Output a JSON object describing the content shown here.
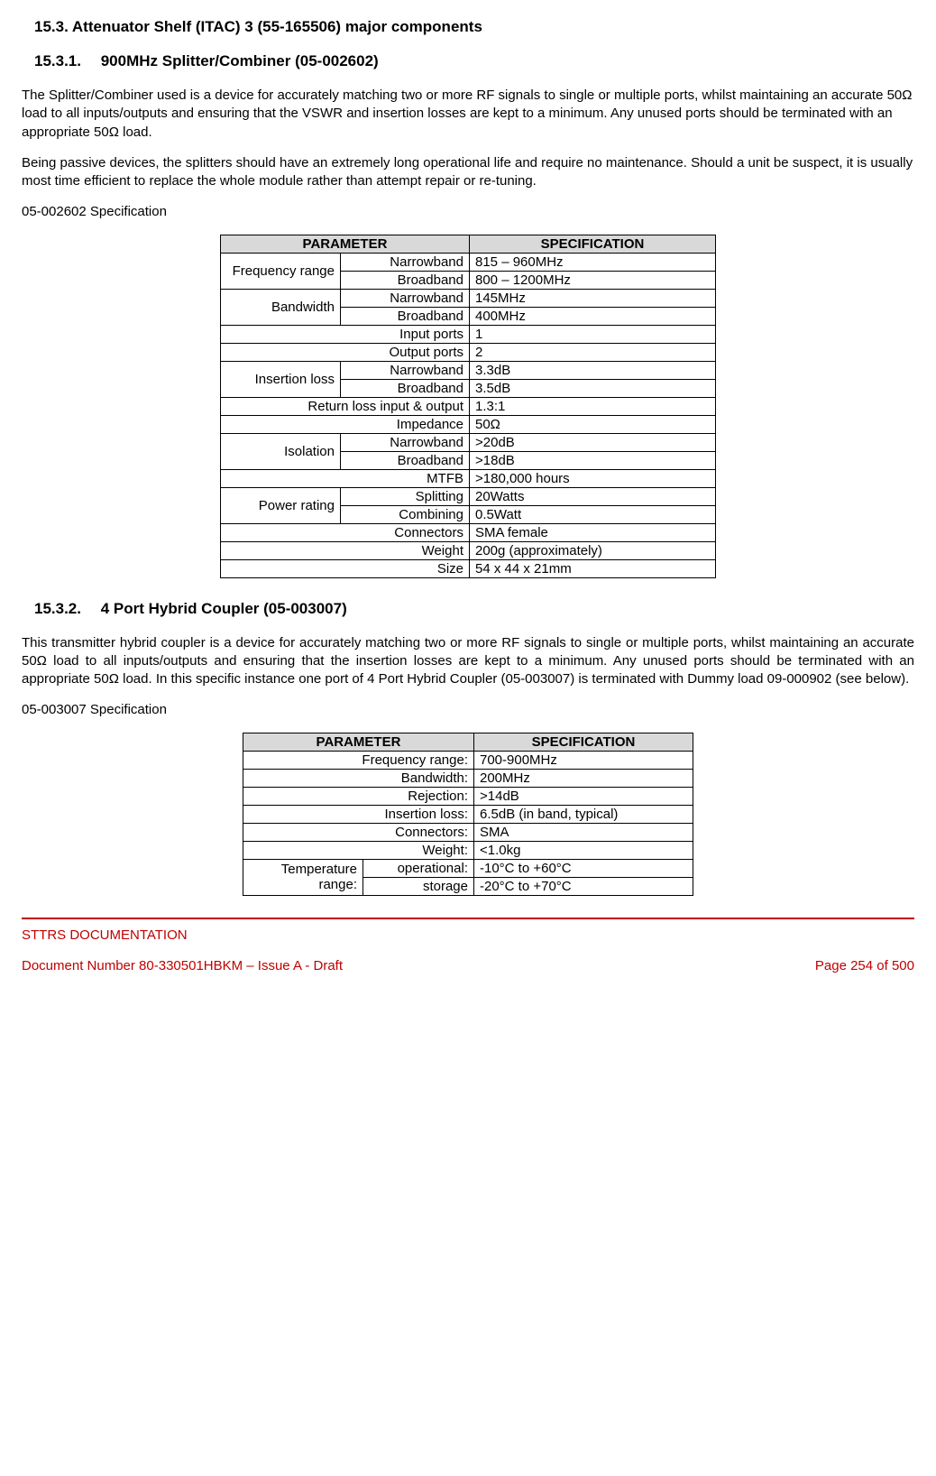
{
  "heading_main": "15.3. Attenuator Shelf (ITAC) 3 (55-165506) major components",
  "section1": {
    "heading": "15.3.1.  900MHz Splitter/Combiner (05-002602)",
    "para1": "The Splitter/Combiner used is a device for accurately matching two or more RF signals to single or multiple ports, whilst maintaining an accurate 50Ω load to all inputs/outputs and ensuring that the VSWR and insertion losses are kept to a minimum. Any unused ports should be terminated with an appropriate 50Ω load.",
    "para2": "Being passive devices, the splitters should have an extremely long operational life and require no maintenance. Should a unit be suspect, it is usually most time efficient to replace the whole module rather than attempt repair or re-tuning.",
    "spec_label": "05-002602 Specification",
    "table": {
      "header_param": "PARAMETER",
      "header_spec": "SPECIFICATION",
      "rows": [
        {
          "main": "Frequency range",
          "sub": "Narrowband",
          "spec": "815 – 960MHz",
          "rowspan": 2
        },
        {
          "sub": "Broadband",
          "spec": "800 – 1200MHz"
        },
        {
          "main": "Bandwidth",
          "sub": "Narrowband",
          "spec": "145MHz",
          "rowspan": 2
        },
        {
          "sub": "Broadband",
          "spec": "400MHz"
        },
        {
          "full": "Input ports",
          "spec": "1"
        },
        {
          "full": "Output ports",
          "spec": "2"
        },
        {
          "main": "Insertion loss",
          "sub": "Narrowband",
          "spec": "3.3dB",
          "rowspan": 2
        },
        {
          "sub": "Broadband",
          "spec": "3.5dB"
        },
        {
          "full": "Return loss input & output",
          "spec": "1.3:1"
        },
        {
          "full": "Impedance",
          "spec": "50Ω"
        },
        {
          "main": "Isolation",
          "sub": "Narrowband",
          "spec": ">20dB",
          "rowspan": 2
        },
        {
          "sub": "Broadband",
          "spec": ">18dB"
        },
        {
          "full": "MTFB",
          "spec": ">180,000 hours"
        },
        {
          "main": "Power rating",
          "sub": "Splitting",
          "spec": "20Watts",
          "rowspan": 2
        },
        {
          "sub": "Combining",
          "spec": "0.5Watt"
        },
        {
          "full": "Connectors",
          "spec": "SMA female"
        },
        {
          "full": "Weight",
          "spec": "200g (approximately)"
        },
        {
          "full": "Size",
          "spec": "54 x 44 x 21mm"
        }
      ]
    }
  },
  "section2": {
    "heading": "15.3.2.  4 Port Hybrid Coupler (05-003007)",
    "para1": "This transmitter hybrid coupler is a device for accurately matching two or more RF signals to single or multiple ports, whilst maintaining an accurate 50Ω load to all inputs/outputs and ensuring that the insertion losses are kept to a minimum. Any unused ports should be terminated with an appropriate 50Ω load. In this specific instance one port of 4 Port Hybrid Coupler (05-003007) is terminated with Dummy load 09-000902 (see below).",
    "spec_label": "05-003007 Specification",
    "table": {
      "header_param": "PARAMETER",
      "header_spec": "SPECIFICATION",
      "rows": [
        {
          "full": "Frequency range:",
          "spec": "700-900MHz"
        },
        {
          "full": "Bandwidth:",
          "spec": "200MHz"
        },
        {
          "full": "Rejection:",
          "spec": ">14dB"
        },
        {
          "full": "Insertion loss:",
          "spec": "6.5dB (in band, typical)"
        },
        {
          "full": "Connectors:",
          "spec": "SMA"
        },
        {
          "full": "Weight:",
          "spec": "<1.0kg"
        },
        {
          "main": "Temperature range:",
          "sub": "operational:",
          "spec": "-10°C to +60°C",
          "rowspan": 2
        },
        {
          "sub": "storage",
          "spec": "-20°C to +70°C"
        }
      ]
    }
  },
  "footer": {
    "line1": "STTRS DOCUMENTATION",
    "doc": "Document Number 80-330501HBKM – Issue A - Draft",
    "page": "Page 254 of 500"
  }
}
